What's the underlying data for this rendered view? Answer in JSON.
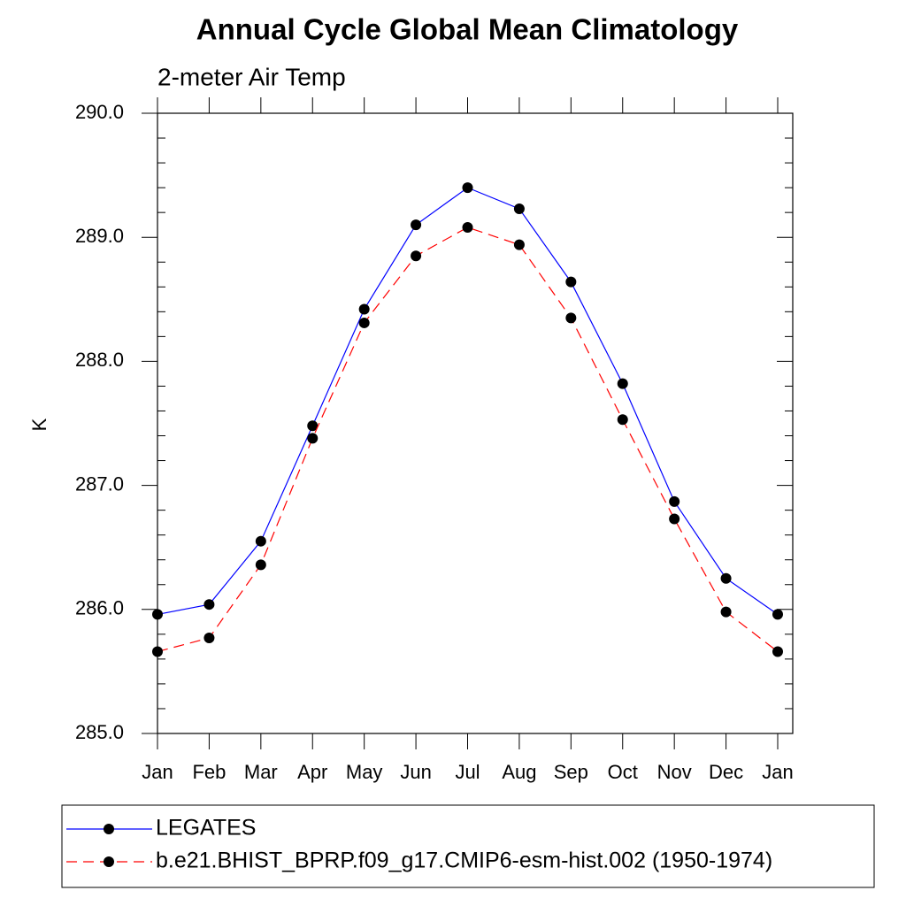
{
  "chart_data": {
    "type": "line",
    "title": "Annual Cycle Global Mean Climatology",
    "subtitle": "2-meter Air Temp",
    "y_label": "K",
    "categories": [
      "Jan",
      "Feb",
      "Mar",
      "Apr",
      "May",
      "Jun",
      "Jul",
      "Aug",
      "Sep",
      "Oct",
      "Nov",
      "Dec",
      "Jan"
    ],
    "series": [
      {
        "name": "LEGATES",
        "color": "#0000ff",
        "dash": "solid",
        "values": [
          285.96,
          286.04,
          286.55,
          287.48,
          288.42,
          289.1,
          289.4,
          289.23,
          288.64,
          287.82,
          286.87,
          286.25,
          285.96
        ]
      },
      {
        "name": "b.e21.BHIST_BPRP.f09_g17.CMIP6-esm-hist.002 (1950-1974)",
        "color": "#ff0000",
        "dash": "dashed",
        "values": [
          285.66,
          285.77,
          286.36,
          287.38,
          288.31,
          288.85,
          289.08,
          288.94,
          288.35,
          287.53,
          286.73,
          285.98,
          285.66
        ]
      }
    ],
    "ylim": [
      285,
      290
    ],
    "yticks": [
      {
        "value": 285,
        "label": "285.0"
      },
      {
        "value": 286,
        "label": "286.0"
      },
      {
        "value": 287,
        "label": "287.0"
      },
      {
        "value": 288,
        "label": "288.0"
      },
      {
        "value": 289,
        "label": "289.0"
      },
      {
        "value": 290,
        "label": "290.0"
      }
    ],
    "yminorticks": [
      285.2,
      285.4,
      285.6,
      285.8,
      286.2,
      286.4,
      286.6,
      286.8,
      287.2,
      287.4,
      287.6,
      287.8,
      288.2,
      288.4,
      288.6,
      288.8,
      289.2,
      289.4,
      289.6,
      289.8
    ],
    "marker": "circle",
    "legend_position": "bottom"
  }
}
